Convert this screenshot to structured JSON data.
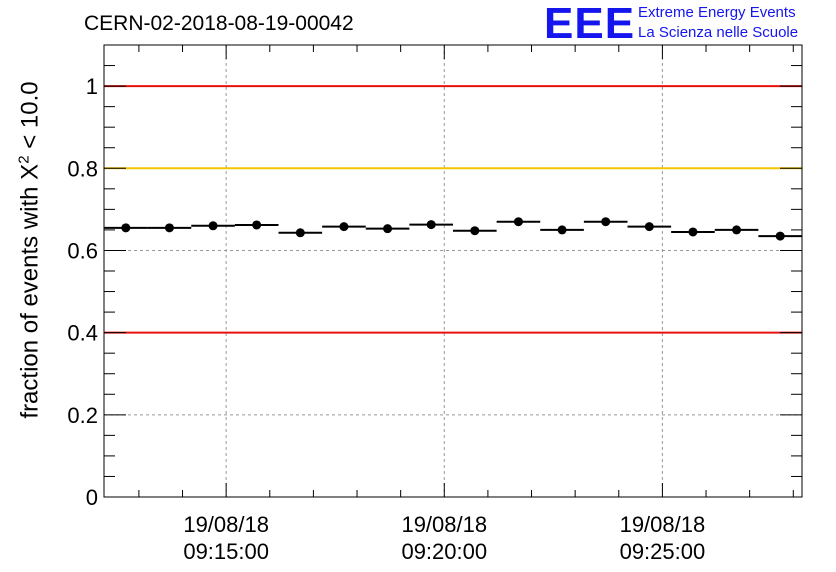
{
  "chart_data": {
    "type": "scatter",
    "title": "CERN-02-2018-08-19-00042",
    "ylabel": {
      "prefix": "fraction of events with ",
      "symbol": "X",
      "superscript": "2",
      "suffix": " < 10.0"
    },
    "xlabel": "",
    "ylim": [
      0,
      1.1
    ],
    "yticks": [
      0,
      0.2,
      0.4,
      0.6,
      0.8,
      1
    ],
    "ytick_labels": [
      "0",
      "0.2",
      "0.4",
      "0.6",
      "0.8",
      "1"
    ],
    "xlim_minutes": [
      -2.8,
      13.2
    ],
    "xticks_minutes": [
      0,
      5,
      10
    ],
    "xtick_labels": [
      {
        "date": "19/08/18",
        "time": "09:15:00"
      },
      {
        "date": "19/08/18",
        "time": "09:20:00"
      },
      {
        "date": "19/08/18",
        "time": "09:25:00"
      }
    ],
    "grid": true,
    "reference_lines": [
      {
        "y": 1.0,
        "color": "#e8120c"
      },
      {
        "y": 0.8,
        "color": "#f5c400"
      },
      {
        "y": 0.4,
        "color": "#e8120c"
      }
    ],
    "bin_width_minutes": 1,
    "series": [
      {
        "name": "fraction",
        "x_minutes": [
          -2.3,
          -1.3,
          -0.3,
          0.7,
          1.7,
          2.7,
          3.7,
          4.7,
          5.7,
          6.7,
          7.7,
          8.7,
          9.7,
          10.7,
          11.7,
          12.7
        ],
        "values": [
          0.655,
          0.655,
          0.66,
          0.662,
          0.643,
          0.658,
          0.653,
          0.663,
          0.648,
          0.67,
          0.65,
          0.67,
          0.658,
          0.645,
          0.65,
          0.635
        ]
      }
    ]
  },
  "logo": {
    "mark": "EEE",
    "line1": "Extreme Energy Events",
    "line2": "La Scienza nelle Scuole"
  },
  "colors": {
    "marker": "#000000",
    "grid": "#999999",
    "logo": "#1515ee"
  }
}
